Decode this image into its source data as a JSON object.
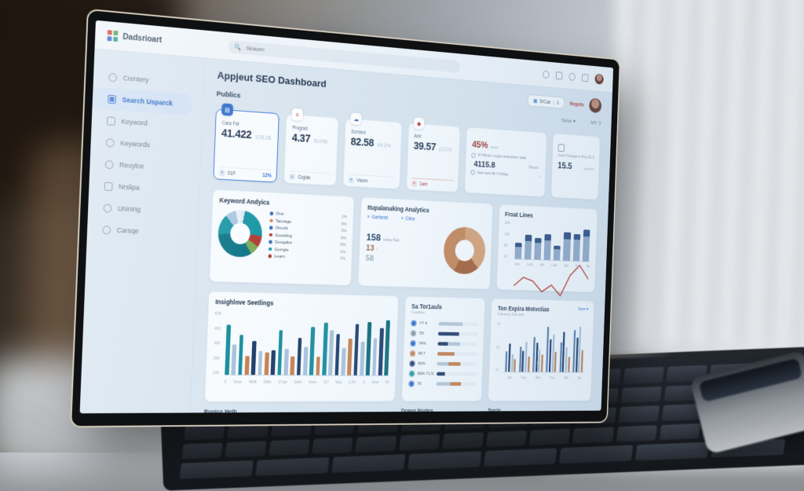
{
  "topbar": {
    "logo_text": "Dadsrioart",
    "logo_colors": [
      "#d6473c",
      "#57a05c",
      "#3a6fd0",
      "#2d9e8f"
    ],
    "search_placeholder": "Seaunn"
  },
  "sidebar": {
    "active_index": 1,
    "items": [
      {
        "label": "Crentery",
        "icon": "compass-icon"
      },
      {
        "label": "Search Usparck",
        "icon": "search-icon"
      },
      {
        "label": "Keyword",
        "icon": "user-icon"
      },
      {
        "label": "Keywords",
        "icon": "share-icon"
      },
      {
        "label": "Reoylce",
        "icon": "target-icon"
      },
      {
        "label": "Nrslipa",
        "icon": "image-icon"
      },
      {
        "label": "Unining",
        "icon": "layers-icon"
      },
      {
        "label": "Carsqe",
        "icon": "folder-icon"
      }
    ]
  },
  "header": {
    "title": "Appjeut SEO Dashboard",
    "date_button": "5/Car",
    "date_button_count": "1",
    "report_label": "Reprts"
  },
  "section": {
    "title": "Publics",
    "time_filter": "Tame ▾",
    "more_link": "MY 3"
  },
  "cards": [
    {
      "kind": "stat",
      "accent": true,
      "icon": "document-icon",
      "chip_bg": "#2f6fd0",
      "chip_fg": "#ffffff",
      "glyph": "▤",
      "label": "Cara Fal",
      "value": "41.422",
      "ghost": "125.28",
      "footer_label": "01F",
      "footer_value": "12%"
    },
    {
      "kind": "stat",
      "accent": false,
      "icon": "list-icon",
      "chip_bg": "#ffffff",
      "chip_fg": "#bb3a30",
      "glyph": "≡",
      "label": "Prograd",
      "value": "4.37",
      "ghost": "5109b",
      "footer_label": "Cojole",
      "footer_value": "",
      "footer_glyph": "✓"
    },
    {
      "kind": "stat",
      "accent": false,
      "icon": "cloud-icon",
      "chip_bg": "#ffffff",
      "chip_fg": "#3a6fb8",
      "glyph": "☁",
      "label": "Scrnted",
      "value": "82.58",
      "ghost": "94.2%",
      "footer_label": "Vlonn",
      "footer_value": ""
    },
    {
      "kind": "stat",
      "accent": false,
      "red": true,
      "icon": "pin-icon",
      "chip_bg": "#ffffff",
      "chip_fg": "#bb3a30",
      "glyph": "◆",
      "label": "Abrl",
      "value": "39.57",
      "ghost": "(22)%",
      "footer_label": "1am",
      "footer_value": ""
    },
    {
      "kind": "wide",
      "icon": "chart-icon",
      "headline": "45%",
      "headline_note": "amd",
      "row1": "W Mfvam nugte avandsbm task",
      "value": "4115.8",
      "value_note": "Rams",
      "row2": "Asw spw fkt Ynfdstg"
    },
    {
      "kind": "mini",
      "icon": "target-icon",
      "note": "www Fdsaga w Rvs 31.5",
      "value": "15.5",
      "value_note": "woacn"
    }
  ],
  "keyword_panel": {
    "title": "Keyword Andyics",
    "legend": [
      {
        "label": "One",
        "value": "1%",
        "color": "#3a6fb8"
      },
      {
        "label": "Tacsage",
        "value": "5%",
        "color": "#d98a3d"
      },
      {
        "label": "Omork",
        "value": "3%",
        "color": "#3a6fb8"
      },
      {
        "label": "Gousling",
        "value": "5%",
        "color": "#bb3a30"
      },
      {
        "label": "Googdes",
        "value": "8%",
        "color": "#3a6fb8"
      },
      {
        "label": "Gorrgle",
        "value": "1%",
        "color": "#1b9aaa"
      },
      {
        "label": "Learn",
        "value": "7%",
        "color": "#bb3a30"
      }
    ],
    "donut_slices": [
      [
        "#dfe9f1",
        3
      ],
      [
        "#1b9aaa",
        23
      ],
      [
        "#b8403a",
        8
      ],
      [
        "#7fae57",
        7
      ],
      [
        "#10798a",
        33
      ],
      [
        "#1b9aaa",
        14
      ],
      [
        "#a9c7e4",
        8
      ],
      [
        "#e8f1f7",
        4
      ]
    ]
  },
  "analytics_panel": {
    "title": "Itupalanaking Analytics",
    "tabs": [
      "Gartanst",
      "Cline"
    ],
    "stats": [
      {
        "value": "158",
        "note": "Iwtay Fad"
      },
      {
        "value": "13",
        "note": "•"
      },
      {
        "value": "58",
        "note": ""
      }
    ],
    "donut_slices": [
      [
        "#d9a273",
        38
      ],
      [
        "#a96136",
        20
      ],
      [
        "#c98757",
        42
      ]
    ]
  },
  "front_lines": {
    "type": "bar+line",
    "title": "Froat Lines",
    "y_ticks": [
      "200",
      "120",
      "90",
      "20"
    ],
    "x_ticks": [
      "Low",
      "Loth",
      "Mb",
      "Lath",
      "Ma",
      "Tis",
      "Tst"
    ],
    "bars": [
      [
        45,
        12
      ],
      [
        68,
        16
      ],
      [
        60,
        14
      ],
      [
        72,
        18
      ],
      [
        42,
        10
      ],
      [
        80,
        18
      ],
      [
        76,
        16
      ],
      [
        90,
        20
      ]
    ],
    "line_points": [
      72,
      62,
      66,
      78,
      70,
      82,
      58,
      46,
      62
    ],
    "colors": {
      "bar": "#92abc9",
      "cap": "#2e4f86",
      "line": "#c0392b"
    }
  },
  "insight": {
    "type": "bar",
    "title": "Insighlove Seetlings",
    "y_ticks": [
      "625",
      "400",
      "300",
      "200",
      "100"
    ],
    "x_ticks": [
      "6",
      "6ouvr",
      "WtW",
      "Sdbn",
      "17 jas",
      "Qubs",
      "Ipwrs",
      "117",
      "Ideg",
      "2.2%",
      "U",
      "Ubsd",
      "64"
    ],
    "palette": [
      "#17909f",
      "#aac3dc",
      "#c9834f",
      "#1f3f6e",
      "#5b82b0",
      "#0d6b7a"
    ],
    "bars": [
      [
        80,
        0
      ],
      [
        48,
        1
      ],
      [
        64,
        0
      ],
      [
        30,
        2
      ],
      [
        54,
        3
      ],
      [
        38,
        1
      ],
      [
        36,
        2
      ],
      [
        40,
        3
      ],
      [
        72,
        0
      ],
      [
        42,
        1
      ],
      [
        30,
        2
      ],
      [
        60,
        3
      ],
      [
        46,
        1
      ],
      [
        78,
        0
      ],
      [
        30,
        2
      ],
      [
        86,
        0
      ],
      [
        74,
        1
      ],
      [
        68,
        3
      ],
      [
        44,
        1
      ],
      [
        60,
        2
      ],
      [
        84,
        3
      ],
      [
        56,
        1
      ],
      [
        88,
        5
      ],
      [
        62,
        1
      ],
      [
        78,
        3
      ],
      [
        92,
        5
      ]
    ]
  },
  "tools": {
    "title": "Sa Tor1auls",
    "subtitle": "Csadfaw",
    "rows": [
      {
        "label": "YT 4",
        "icon_color": "#2f6fd0",
        "segments": [
          [
            "#b9c8d8",
            60
          ]
        ]
      },
      {
        "label": "75!",
        "icon_color": "#8a97a6",
        "segments": [
          [
            "#24406e",
            52
          ]
        ]
      },
      {
        "label": "74%",
        "icon_color": "#2f6fd0",
        "segments": [
          [
            "#24406e",
            26
          ],
          [
            "#b9c8d8",
            30
          ]
        ]
      },
      {
        "label": "98.7",
        "icon_color": "#c9834f",
        "segments": [
          [
            "#c9834f",
            42
          ]
        ]
      },
      {
        "label": "93%",
        "icon_color": "#24406e",
        "segments": [
          [
            "#b9c8d8",
            28
          ],
          [
            "#c9834f",
            30
          ]
        ]
      },
      {
        "label": "99% 71.52%",
        "icon_color": "#1a9aa8",
        "segments": [
          [
            "#24406e",
            20
          ]
        ]
      },
      {
        "label": "7K",
        "icon_color": "#2f6fd0",
        "segments": [
          [
            "#b9c8d8",
            34
          ],
          [
            "#c9834f",
            28
          ]
        ]
      }
    ]
  },
  "expire": {
    "type": "grouped-bar",
    "title": "Ton Expira Motvctias",
    "subtitle": "Fdsvsmg fwts ash",
    "link": "Spre ▾",
    "y_ticks": [
      "90",
      "50",
      "10"
    ],
    "x_ticks": [
      "Lth",
      "Tne",
      "Wrs",
      "Fne",
      "Mw",
      "Sa"
    ],
    "palette": [
      "#5b82b0",
      "#1f3f6e",
      "#aac3dc",
      "#c9834f"
    ],
    "groups": [
      [
        40,
        55,
        35,
        25
      ],
      [
        50,
        42,
        60,
        30
      ],
      [
        70,
        58,
        45,
        35
      ],
      [
        90,
        65,
        75,
        40
      ],
      [
        60,
        80,
        50,
        30
      ],
      [
        85,
        70,
        92,
        45
      ]
    ]
  },
  "bottom_labels": {
    "left": "Ronice Helb",
    "mid": "Dragg Nudes",
    "right": "Sncle"
  }
}
